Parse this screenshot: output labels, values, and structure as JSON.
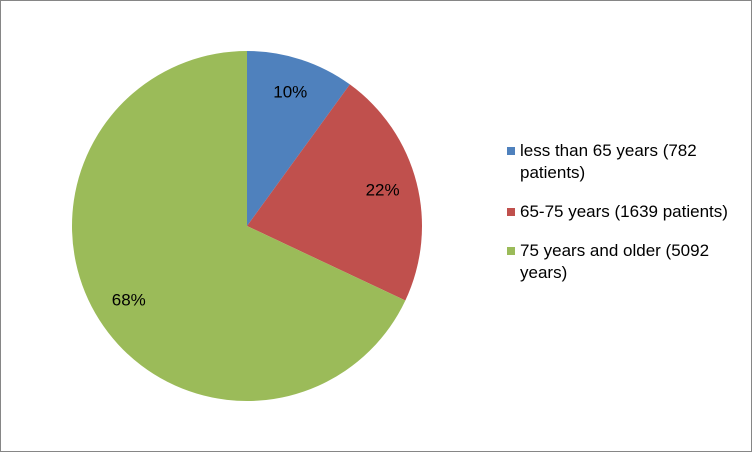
{
  "chart_data": {
    "type": "pie",
    "categories": [
      "less than 65 years (782 patients)",
      "65-75 years (1639 patients)",
      "75 years and older (5092 years)"
    ],
    "values": [
      10,
      22,
      68
    ],
    "value_labels": [
      "10%",
      "22%",
      "68%"
    ],
    "colors": [
      "#4f81bd",
      "#c0504d",
      "#9bbb59"
    ],
    "legend": "right"
  }
}
